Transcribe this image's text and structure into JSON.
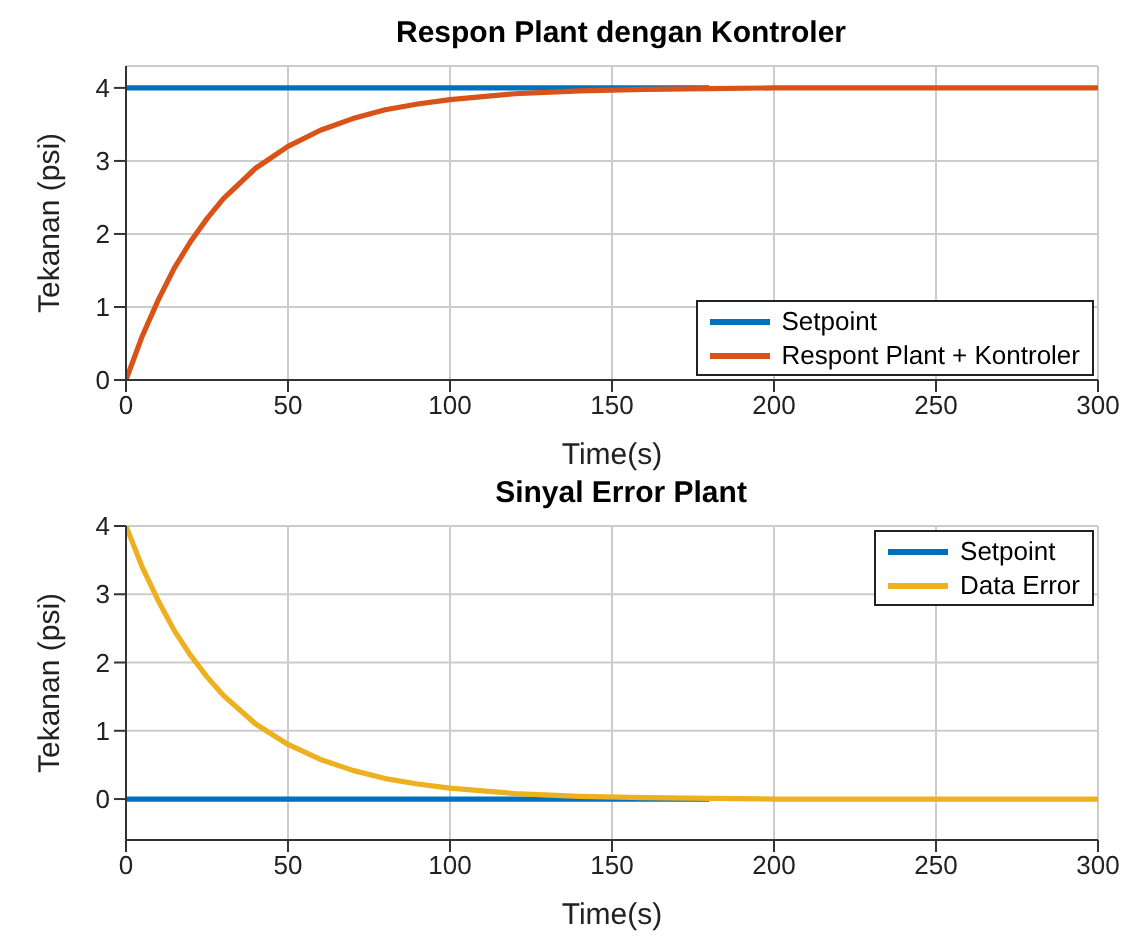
{
  "chart_data": [
    {
      "type": "line",
      "title": "Respon Plant dengan Kontroler",
      "xlabel": "Time(s)",
      "ylabel": "Tekanan (psi)",
      "x": [
        0,
        5,
        10,
        15,
        20,
        25,
        30,
        40,
        50,
        60,
        70,
        80,
        90,
        100,
        120,
        140,
        160,
        180,
        200,
        250,
        300
      ],
      "series": [
        {
          "name": "Setpoint",
          "color": "#0072bd",
          "values": [
            4,
            4,
            4,
            4,
            4,
            4,
            4,
            4,
            4,
            4,
            4,
            4,
            4,
            4,
            4,
            4,
            4,
            4,
            null,
            null,
            null
          ]
        },
        {
          "name": "Respont Plant + Kontroler",
          "color": "#d95319",
          "values": [
            0,
            0.6,
            1.1,
            1.54,
            1.9,
            2.21,
            2.48,
            2.9,
            3.2,
            3.42,
            3.58,
            3.7,
            3.78,
            3.84,
            3.92,
            3.96,
            3.98,
            3.99,
            4,
            4,
            4
          ]
        }
      ],
      "xlim": [
        0,
        300
      ],
      "ylim": [
        0,
        4.3
      ],
      "xticks": [
        0,
        50,
        100,
        150,
        200,
        250,
        300
      ],
      "yticks": [
        0,
        1,
        2,
        3,
        4
      ],
      "grid": true,
      "legend": "bottom right"
    },
    {
      "type": "line",
      "title": "Sinyal Error Plant",
      "xlabel": "Time(s)",
      "ylabel": "Tekanan (psi)",
      "x": [
        0,
        5,
        10,
        15,
        20,
        25,
        30,
        40,
        50,
        60,
        70,
        80,
        90,
        100,
        120,
        140,
        160,
        180,
        200,
        250,
        300
      ],
      "series": [
        {
          "name": "Setpoint",
          "color": "#0072bd",
          "values": [
            0,
            0,
            0,
            0,
            0,
            0,
            0,
            0,
            0,
            0,
            0,
            0,
            0,
            0,
            0,
            0,
            0,
            0,
            null,
            null,
            null
          ]
        },
        {
          "name": "Data Error",
          "color": "#edb120",
          "values": [
            4,
            3.4,
            2.9,
            2.46,
            2.1,
            1.79,
            1.52,
            1.1,
            0.8,
            0.58,
            0.42,
            0.3,
            0.22,
            0.16,
            0.08,
            0.04,
            0.02,
            0.01,
            0,
            0,
            0
          ]
        }
      ],
      "xlim": [
        0,
        300
      ],
      "ylim": [
        -0.6,
        4
      ],
      "xticks": [
        0,
        50,
        100,
        150,
        200,
        250,
        300
      ],
      "yticks": [
        0,
        1,
        2,
        3,
        4
      ],
      "grid": true,
      "legend": "top right"
    }
  ]
}
